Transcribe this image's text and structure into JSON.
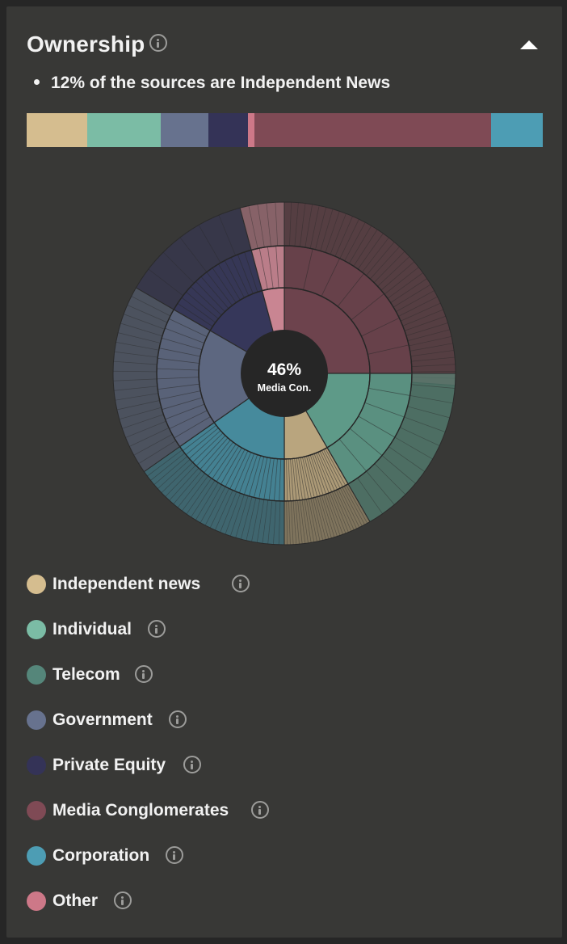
{
  "panel": {
    "title": "Ownership",
    "title_icon": "info-icon",
    "collapse_icon": "caret-up-icon",
    "summary": "12% of the sources are Independent News"
  },
  "stacked_bar": [
    {
      "key": "independent",
      "color": "#d5bd8f",
      "share": 11.7
    },
    {
      "key": "individual",
      "color": "#7bbca5",
      "share": 14.3
    },
    {
      "key": "government",
      "color": "#67728e",
      "share": 9.2
    },
    {
      "key": "private_equity",
      "color": "#343357",
      "share": 7.7
    },
    {
      "key": "other",
      "color": "#cd7888",
      "share": 1.3
    },
    {
      "key": "media",
      "color": "#7f4a55",
      "share": 45.8
    },
    {
      "key": "corporation",
      "color": "#4d9db4",
      "share": 10.0
    }
  ],
  "chart_data": {
    "type": "sunburst",
    "center_value": "46%",
    "center_label": "Media Con.",
    "segments": [
      {
        "key": "media",
        "start": 0,
        "end": 90,
        "outer_end": 94,
        "color": "#6d434d",
        "ticks": 7,
        "outer_ticks": 40
      },
      {
        "key": "telecom_individual",
        "start": 90,
        "end": 150,
        "outer_end": 150,
        "color": "#5e9a88",
        "ticks": 6,
        "outer_ticks": 12
      },
      {
        "key": "independent",
        "start": 150,
        "end": 180,
        "outer_end": 180,
        "color": "#b9a57e",
        "ticks": 22,
        "outer_ticks": 30
      },
      {
        "key": "corporation",
        "start": 180,
        "end": 235,
        "outer_end": 235,
        "color": "#468a9c",
        "ticks": 24,
        "outer_ticks": 30
      },
      {
        "key": "government",
        "start": 235,
        "end": 300,
        "outer_end": 300,
        "color": "#5d6780",
        "ticks": 14,
        "outer_ticks": 20
      },
      {
        "key": "private_equity",
        "start": 300,
        "end": 345,
        "outer_end": 345,
        "color": "#36375a",
        "ticks": 14,
        "outer_ticks": 6
      },
      {
        "key": "other",
        "start": 345,
        "end": 360,
        "outer_end": 360,
        "color": "#c98592",
        "ticks": 4,
        "outer_ticks": 5
      }
    ]
  },
  "legend": [
    {
      "label": "Independent news",
      "color": "#d5bd8f"
    },
    {
      "label": "Individual",
      "color": "#7bbca5"
    },
    {
      "label": "Telecom",
      "color": "#55867a"
    },
    {
      "label": "Government",
      "color": "#67728e"
    },
    {
      "label": "Private Equity",
      "color": "#343357"
    },
    {
      "label": "Media Conglomerates",
      "color": "#7f4a55"
    },
    {
      "label": "Corporation",
      "color": "#4d9db4"
    },
    {
      "label": "Other",
      "color": "#cd7888"
    }
  ]
}
